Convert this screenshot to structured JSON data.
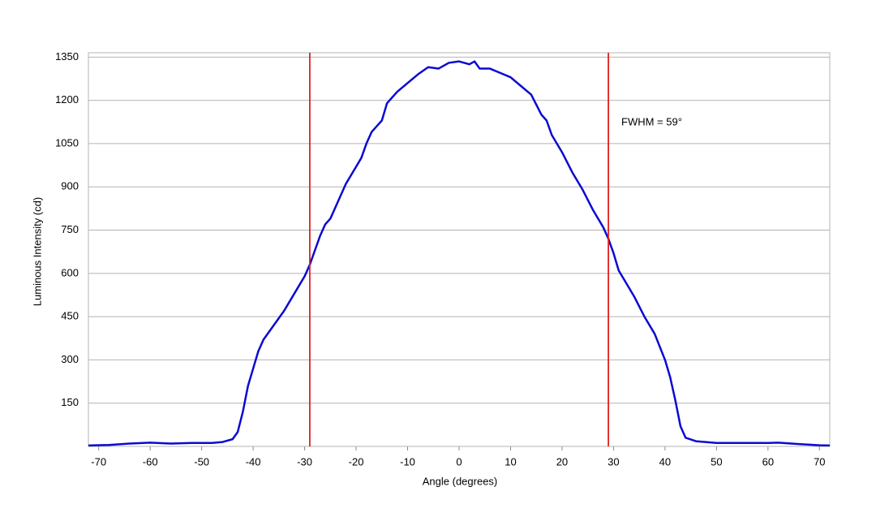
{
  "chart_data": {
    "type": "line",
    "x_label": "Angle (degrees)",
    "y_label": "Luminous Intensity (cd)",
    "annotation": "FWHM = 59°",
    "x": [
      -72,
      -68,
      -64,
      -60,
      -56,
      -52,
      -48,
      -46,
      -44,
      -43,
      -42,
      -41,
      -40,
      -39,
      -38,
      -36,
      -34,
      -32,
      -30,
      -29,
      -28,
      -27,
      -26,
      -25,
      -24,
      -22,
      -20,
      -19,
      -18,
      -17,
      -16,
      -15,
      -14,
      -12,
      -10,
      -8,
      -6,
      -4,
      -2,
      0,
      2,
      3,
      4,
      6,
      8,
      10,
      12,
      14,
      16,
      17,
      18,
      20,
      22,
      24,
      26,
      28,
      29,
      30,
      31,
      32,
      34,
      36,
      38,
      40,
      41,
      42,
      43,
      44,
      46,
      50,
      55,
      60,
      62,
      66,
      70,
      72
    ],
    "series": [
      {
        "color": "#0a0ad2",
        "values": [
          3,
          5,
          10,
          13,
          10,
          12,
          12,
          15,
          25,
          50,
          120,
          210,
          270,
          330,
          370,
          420,
          470,
          530,
          590,
          630,
          680,
          730,
          770,
          790,
          830,
          910,
          970,
          1000,
          1050,
          1090,
          1110,
          1130,
          1190,
          1230,
          1260,
          1290,
          1315,
          1310,
          1330,
          1335,
          1325,
          1335,
          1310,
          1310,
          1295,
          1280,
          1250,
          1220,
          1150,
          1130,
          1080,
          1020,
          950,
          890,
          820,
          760,
          720,
          670,
          610,
          580,
          520,
          450,
          390,
          300,
          240,
          160,
          70,
          30,
          18,
          12,
          12,
          12,
          13,
          8,
          4,
          3
        ]
      }
    ],
    "vlines": {
      "color": "#e02020",
      "values": [
        -29,
        29
      ]
    },
    "xlim": [
      -72,
      72
    ],
    "ylim": [
      0,
      1365
    ],
    "xticks": [
      -70,
      -60,
      -50,
      -40,
      -30,
      -20,
      -10,
      0,
      10,
      20,
      30,
      40,
      50,
      60,
      70
    ],
    "yticks": [
      150,
      300,
      450,
      600,
      750,
      900,
      1050,
      1200,
      1350
    ],
    "grid": true
  }
}
